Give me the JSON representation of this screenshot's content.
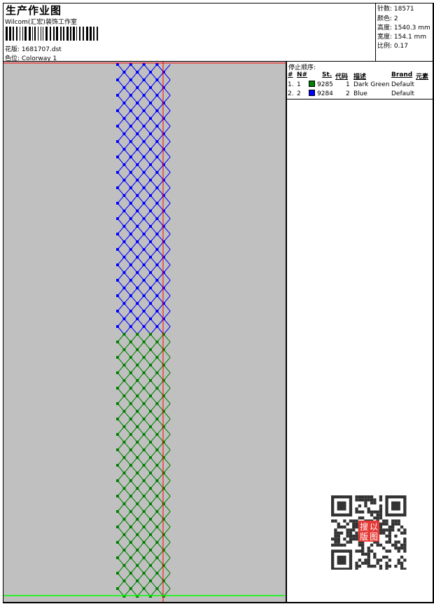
{
  "header": {
    "title": "生产作业图",
    "subtitle": "Wilcom(汇宏)装饰工作室",
    "file_label": "花版:",
    "file_value": "1681707.dst",
    "colorway_label": "色位:",
    "colorway_value": "Colorway 1"
  },
  "info": [
    {
      "label": "针数:",
      "value": "18571"
    },
    {
      "label": "颜色:",
      "value": "2"
    },
    {
      "label": "高度:",
      "value": "1540.3 mm"
    },
    {
      "label": "宽度:",
      "value": "154.1 mm"
    },
    {
      "label": "比例:",
      "value": "0.17"
    }
  ],
  "stop_sequence": {
    "title": "停止顺序:",
    "columns": [
      "#",
      "N#",
      "St.",
      "代码",
      "描述",
      "Brand",
      "元素"
    ],
    "rows": [
      {
        "idx": "1.",
        "n": "1",
        "color": "#008000",
        "st": "9285",
        "code": "1",
        "desc": "Dark Green",
        "brand": "Default"
      },
      {
        "idx": "2.",
        "n": "2",
        "color": "#0000ff",
        "st": "9284",
        "code": "2",
        "desc": "Blue",
        "brand": "Default"
      }
    ]
  },
  "design": {
    "background": "#c0c0c0",
    "top_color": "#0000ff",
    "bottom_color": "#008000",
    "guide_color": "#ff0000",
    "baseline_color": "#00ff00"
  },
  "qr": {
    "stamp_text": "以图搜版",
    "stamp_color": "#e53935"
  }
}
